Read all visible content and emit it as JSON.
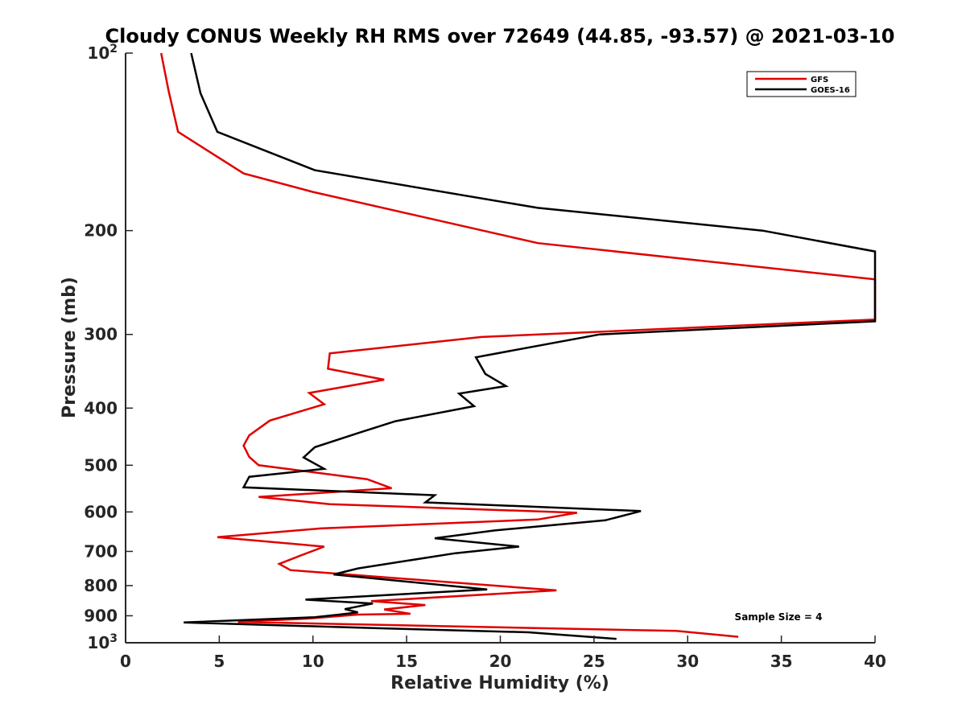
{
  "chart_data": {
    "type": "line",
    "title": "Cloudy CONUS Weekly RH RMS over 72649 (44.85, -93.57) @ 2021-03-10",
    "xlabel": "Relative Humidity (%)",
    "ylabel": "Pressure (mb)",
    "xlim": [
      0,
      40
    ],
    "ylim": [
      100,
      1000
    ],
    "y_scale": "log",
    "y_reversed": true,
    "grid": false,
    "legend_position": "top-right",
    "x_ticks": [
      "0",
      "5",
      "10",
      "15",
      "20",
      "25",
      "30",
      "35",
      "40"
    ],
    "y_ticks": [
      {
        "value": 100,
        "label": "10",
        "sup": "2"
      },
      {
        "value": 200,
        "label": "200"
      },
      {
        "value": 300,
        "label": "300"
      },
      {
        "value": 400,
        "label": "400"
      },
      {
        "value": 500,
        "label": "500"
      },
      {
        "value": 600,
        "label": "600"
      },
      {
        "value": 700,
        "label": "700"
      },
      {
        "value": 800,
        "label": "800"
      },
      {
        "value": 900,
        "label": "900"
      },
      {
        "value": 1000,
        "label": "10",
        "sup": "3"
      }
    ],
    "annotation": "Sample Size = 4",
    "series": [
      {
        "name": "GFS",
        "color": "#e00000",
        "points": [
          [
            1.9,
            100
          ],
          [
            2.3,
            116
          ],
          [
            2.8,
            136
          ],
          [
            6.3,
            160
          ],
          [
            10,
            172
          ],
          [
            22,
            210
          ],
          [
            40,
            242
          ],
          [
            40,
            283
          ],
          [
            19,
            303
          ],
          [
            10.9,
            323
          ],
          [
            10.8,
            343
          ],
          [
            13.8,
            358
          ],
          [
            9.8,
            377
          ],
          [
            10.6,
            394
          ],
          [
            7.7,
            420
          ],
          [
            6.6,
            445
          ],
          [
            6.3,
            463
          ],
          [
            6.6,
            484
          ],
          [
            7.1,
            500
          ],
          [
            12.9,
            528
          ],
          [
            14.2,
            547
          ],
          [
            7.1,
            566
          ],
          [
            10.9,
            582
          ],
          [
            24.1,
            602
          ],
          [
            22,
            618
          ],
          [
            10.4,
            640
          ],
          [
            4.9,
            662
          ],
          [
            10.6,
            687
          ],
          [
            9.3,
            712
          ],
          [
            8.2,
            735
          ],
          [
            8.8,
            753
          ],
          [
            23,
            815
          ],
          [
            13.1,
            850
          ],
          [
            16,
            863
          ],
          [
            13.8,
            878
          ],
          [
            15.2,
            893
          ],
          [
            12.4,
            896
          ],
          [
            9.7,
            910
          ],
          [
            6,
            922
          ],
          [
            29.4,
            955
          ],
          [
            32.7,
            977
          ]
        ]
      },
      {
        "name": "GOES-16",
        "color": "#000000",
        "points": [
          [
            3.5,
            100
          ],
          [
            4,
            117
          ],
          [
            4.9,
            136
          ],
          [
            10.1,
            158
          ],
          [
            22,
            183
          ],
          [
            34,
            200
          ],
          [
            40,
            217
          ],
          [
            40,
            285
          ],
          [
            25.3,
            300
          ],
          [
            18.7,
            328
          ],
          [
            19.2,
            350
          ],
          [
            20.3,
            367
          ],
          [
            17.8,
            378
          ],
          [
            18.6,
            397
          ],
          [
            14.4,
            421
          ],
          [
            12.5,
            440
          ],
          [
            10.1,
            466
          ],
          [
            9.5,
            485
          ],
          [
            10.6,
            507
          ],
          [
            6.6,
            523
          ],
          [
            6.3,
            545
          ],
          [
            16.5,
            562
          ],
          [
            16,
            578
          ],
          [
            27.5,
            598
          ],
          [
            25.6,
            620
          ],
          [
            19.7,
            645
          ],
          [
            16.5,
            665
          ],
          [
            21,
            687
          ],
          [
            17.6,
            705
          ],
          [
            12.4,
            748
          ],
          [
            11.1,
            766
          ],
          [
            19.3,
            812
          ],
          [
            9.6,
            845
          ],
          [
            13.2,
            858
          ],
          [
            11.7,
            877
          ],
          [
            12.4,
            888
          ],
          [
            11.5,
            895
          ],
          [
            10.1,
            905
          ],
          [
            3.1,
            924
          ],
          [
            13.6,
            945
          ],
          [
            21.5,
            960
          ],
          [
            26.2,
            985
          ]
        ]
      }
    ]
  }
}
